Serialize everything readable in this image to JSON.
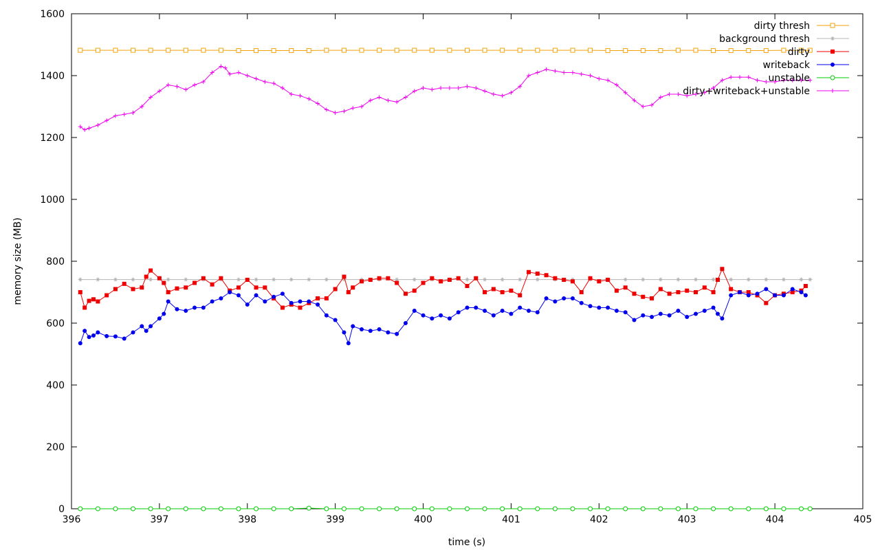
{
  "chart_data": {
    "type": "line",
    "title": "",
    "xlabel": "time (s)",
    "ylabel": "memory size (MB)",
    "xlim": [
      396,
      405
    ],
    "ylim": [
      0,
      1600
    ],
    "x_ticks": [
      396,
      397,
      398,
      399,
      400,
      401,
      402,
      403,
      404,
      405
    ],
    "y_ticks": [
      0,
      200,
      400,
      600,
      800,
      1000,
      1200,
      1400,
      1600
    ],
    "x_tick_labels": [
      "396",
      "397",
      "398",
      "399",
      "400",
      "401",
      "402",
      "403",
      "404",
      "405"
    ],
    "y_tick_labels": [
      "0",
      "200",
      "400",
      "600",
      "800",
      "1000",
      "1200",
      "1400",
      "1600"
    ],
    "legend_position": "top-right",
    "grid": false,
    "series": [
      {
        "name": "dirty thresh",
        "color": "#f5a20a",
        "marker": "square-open",
        "x": [
          396.1,
          396.3,
          396.5,
          396.7,
          396.9,
          397.1,
          397.3,
          397.5,
          397.7,
          397.9,
          398.1,
          398.3,
          398.5,
          398.7,
          398.9,
          399.1,
          399.3,
          399.5,
          399.7,
          399.9,
          400.1,
          400.3,
          400.5,
          400.7,
          400.9,
          401.1,
          401.3,
          401.5,
          401.7,
          401.9,
          402.1,
          402.3,
          402.5,
          402.7,
          402.9,
          403.1,
          403.3,
          403.5,
          403.7,
          403.9,
          404.1,
          404.3,
          404.4
        ],
        "y": [
          1482,
          1482,
          1482,
          1482,
          1482,
          1482,
          1482,
          1482,
          1482,
          1481,
          1481,
          1481,
          1481,
          1481,
          1482,
          1482,
          1482,
          1482,
          1482,
          1482,
          1482,
          1482,
          1482,
          1482,
          1482,
          1482,
          1482,
          1482,
          1482,
          1482,
          1481,
          1481,
          1481,
          1481,
          1482,
          1482,
          1481,
          1481,
          1481,
          1481,
          1482,
          1482,
          1482
        ]
      },
      {
        "name": "background thresh",
        "color": "#b4b4b4",
        "marker": "star",
        "x": [
          396.1,
          396.3,
          396.5,
          396.7,
          396.9,
          397.1,
          397.3,
          397.5,
          397.7,
          397.9,
          398.1,
          398.3,
          398.5,
          398.7,
          398.9,
          399.1,
          399.3,
          399.5,
          399.7,
          399.9,
          400.1,
          400.3,
          400.5,
          400.7,
          400.9,
          401.1,
          401.3,
          401.5,
          401.7,
          401.9,
          402.1,
          402.3,
          402.5,
          402.7,
          402.9,
          403.1,
          403.3,
          403.5,
          403.7,
          403.9,
          404.1,
          404.3,
          404.4
        ],
        "y": [
          741,
          741,
          741,
          741,
          741,
          741,
          741,
          741,
          741,
          741,
          741,
          741,
          741,
          741,
          741,
          741,
          741,
          741,
          741,
          741,
          741,
          741,
          741,
          741,
          741,
          741,
          741,
          741,
          741,
          741,
          741,
          741,
          741,
          741,
          741,
          741,
          741,
          741,
          741,
          741,
          741,
          741,
          741
        ]
      },
      {
        "name": "dirty",
        "color": "#ee0000",
        "marker": "square",
        "x": [
          396.1,
          396.15,
          396.2,
          396.25,
          396.3,
          396.4,
          396.5,
          396.6,
          396.7,
          396.8,
          396.85,
          396.9,
          397.0,
          397.05,
          397.1,
          397.2,
          397.3,
          397.4,
          397.5,
          397.6,
          397.7,
          397.8,
          397.9,
          398.0,
          398.1,
          398.2,
          398.3,
          398.4,
          398.5,
          398.6,
          398.7,
          398.8,
          398.9,
          399.0,
          399.1,
          399.15,
          399.2,
          399.3,
          399.4,
          399.5,
          399.6,
          399.7,
          399.8,
          399.9,
          400.0,
          400.1,
          400.2,
          400.3,
          400.4,
          400.5,
          400.6,
          400.7,
          400.8,
          400.9,
          401.0,
          401.1,
          401.2,
          401.3,
          401.4,
          401.5,
          401.6,
          401.7,
          401.8,
          401.9,
          402.0,
          402.1,
          402.2,
          402.3,
          402.4,
          402.5,
          402.6,
          402.7,
          402.8,
          402.9,
          403.0,
          403.1,
          403.2,
          403.3,
          403.35,
          403.4,
          403.5,
          403.6,
          403.7,
          403.8,
          403.9,
          404.0,
          404.1,
          404.2,
          404.3,
          404.35
        ],
        "y": [
          700,
          650,
          672,
          677,
          670,
          690,
          710,
          727,
          710,
          715,
          750,
          770,
          745,
          730,
          700,
          712,
          715,
          730,
          745,
          725,
          745,
          705,
          715,
          740,
          715,
          715,
          680,
          650,
          660,
          650,
          665,
          680,
          680,
          710,
          750,
          700,
          715,
          735,
          740,
          745,
          745,
          730,
          695,
          705,
          730,
          745,
          735,
          740,
          745,
          720,
          745,
          700,
          710,
          700,
          705,
          690,
          765,
          760,
          755,
          745,
          740,
          735,
          700,
          745,
          735,
          740,
          705,
          715,
          695,
          685,
          680,
          710,
          695,
          700,
          705,
          700,
          715,
          700,
          740,
          775,
          710,
          700,
          700,
          690,
          665,
          690,
          695,
          700,
          705,
          720
        ]
      },
      {
        "name": "writeback",
        "color": "#0000ee",
        "marker": "circle",
        "x": [
          396.1,
          396.15,
          396.2,
          396.25,
          396.3,
          396.4,
          396.5,
          396.6,
          396.7,
          396.8,
          396.85,
          396.9,
          397.0,
          397.05,
          397.1,
          397.2,
          397.3,
          397.4,
          397.5,
          397.6,
          397.7,
          397.8,
          397.9,
          398.0,
          398.1,
          398.2,
          398.3,
          398.4,
          398.5,
          398.6,
          398.7,
          398.8,
          398.9,
          399.0,
          399.1,
          399.15,
          399.2,
          399.3,
          399.4,
          399.5,
          399.6,
          399.7,
          399.8,
          399.9,
          400.0,
          400.1,
          400.2,
          400.3,
          400.4,
          400.5,
          400.6,
          400.7,
          400.8,
          400.9,
          401.0,
          401.1,
          401.2,
          401.3,
          401.4,
          401.5,
          401.6,
          401.7,
          401.8,
          401.9,
          402.0,
          402.1,
          402.2,
          402.3,
          402.4,
          402.5,
          402.6,
          402.7,
          402.8,
          402.9,
          403.0,
          403.1,
          403.2,
          403.3,
          403.35,
          403.4,
          403.5,
          403.6,
          403.7,
          403.8,
          403.9,
          404.0,
          404.1,
          404.2,
          404.3,
          404.35
        ],
        "y": [
          535,
          575,
          555,
          560,
          570,
          558,
          557,
          550,
          570,
          590,
          575,
          590,
          615,
          630,
          670,
          645,
          640,
          650,
          650,
          670,
          680,
          700,
          690,
          660,
          690,
          670,
          685,
          695,
          665,
          670,
          670,
          660,
          625,
          610,
          570,
          535,
          590,
          580,
          575,
          580,
          570,
          565,
          600,
          640,
          625,
          615,
          625,
          615,
          635,
          650,
          650,
          640,
          625,
          640,
          630,
          650,
          640,
          635,
          680,
          670,
          680,
          680,
          665,
          655,
          650,
          650,
          640,
          635,
          610,
          625,
          620,
          630,
          625,
          640,
          620,
          630,
          640,
          650,
          630,
          615,
          690,
          700,
          690,
          695,
          710,
          690,
          690,
          710,
          700,
          690
        ]
      },
      {
        "name": "unstable",
        "color": "#00cc00",
        "marker": "circle-open",
        "x": [
          396.1,
          396.3,
          396.5,
          396.7,
          396.9,
          397.1,
          397.3,
          397.5,
          397.7,
          397.9,
          398.1,
          398.3,
          398.5,
          398.7,
          398.9,
          399.1,
          399.3,
          399.5,
          399.7,
          399.9,
          400.1,
          400.3,
          400.5,
          400.7,
          400.9,
          401.1,
          401.3,
          401.5,
          401.7,
          401.9,
          402.1,
          402.3,
          402.5,
          402.7,
          402.9,
          403.1,
          403.3,
          403.5,
          403.7,
          403.9,
          404.1,
          404.3,
          404.4
        ],
        "y": [
          0,
          0,
          0,
          0,
          0,
          0,
          0,
          0,
          0,
          0,
          0,
          0,
          0,
          2,
          0,
          0,
          0,
          0,
          0,
          0,
          0,
          0,
          0,
          0,
          0,
          0,
          0,
          0,
          0,
          0,
          0,
          0,
          0,
          0,
          0,
          0,
          0,
          0,
          0,
          0,
          0,
          0,
          0
        ]
      },
      {
        "name": "dirty+writeback+unstable",
        "color": "#ee00ee",
        "marker": "plus",
        "x": [
          396.1,
          396.15,
          396.2,
          396.3,
          396.4,
          396.5,
          396.6,
          396.7,
          396.8,
          396.9,
          397.0,
          397.1,
          397.2,
          397.3,
          397.4,
          397.5,
          397.6,
          397.7,
          397.75,
          397.8,
          397.9,
          398.0,
          398.1,
          398.2,
          398.3,
          398.4,
          398.5,
          398.6,
          398.7,
          398.8,
          398.9,
          399.0,
          399.1,
          399.2,
          399.3,
          399.4,
          399.5,
          399.6,
          399.7,
          399.8,
          399.9,
          400.0,
          400.1,
          400.2,
          400.3,
          400.4,
          400.5,
          400.6,
          400.7,
          400.8,
          400.9,
          401.0,
          401.1,
          401.2,
          401.3,
          401.4,
          401.5,
          401.6,
          401.7,
          401.8,
          401.9,
          402.0,
          402.1,
          402.2,
          402.3,
          402.4,
          402.5,
          402.6,
          402.7,
          402.8,
          402.9,
          403.0,
          403.1,
          403.2,
          403.3,
          403.4,
          403.5,
          403.6,
          403.7,
          403.8,
          403.9,
          404.0,
          404.1,
          404.2,
          404.3,
          404.4
        ],
        "y": [
          1235,
          1225,
          1230,
          1240,
          1255,
          1270,
          1275,
          1280,
          1300,
          1330,
          1350,
          1370,
          1365,
          1355,
          1370,
          1380,
          1410,
          1430,
          1425,
          1405,
          1410,
          1400,
          1390,
          1380,
          1375,
          1360,
          1340,
          1335,
          1325,
          1310,
          1290,
          1280,
          1285,
          1295,
          1300,
          1320,
          1330,
          1320,
          1315,
          1330,
          1350,
          1360,
          1355,
          1360,
          1360,
          1360,
          1365,
          1360,
          1350,
          1340,
          1335,
          1345,
          1365,
          1400,
          1410,
          1420,
          1415,
          1410,
          1410,
          1405,
          1400,
          1390,
          1385,
          1370,
          1345,
          1320,
          1300,
          1305,
          1330,
          1340,
          1340,
          1335,
          1340,
          1345,
          1360,
          1385,
          1395,
          1395,
          1395,
          1385,
          1380,
          1380,
          1385,
          1385,
          1385,
          1385
        ]
      }
    ]
  }
}
